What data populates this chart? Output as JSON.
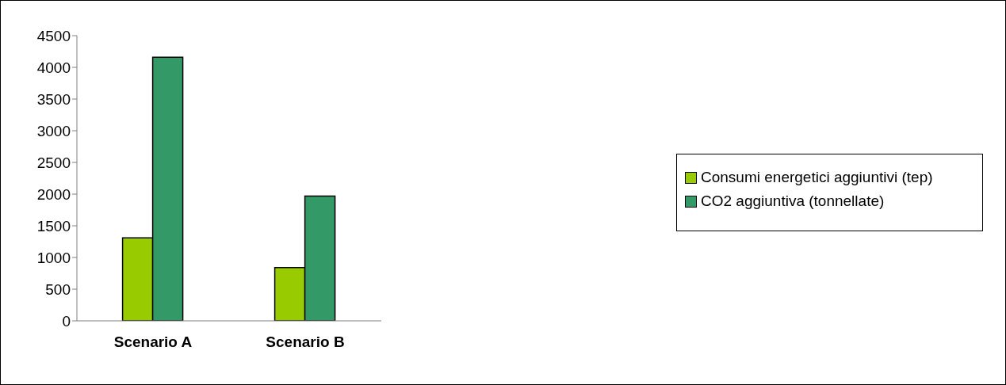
{
  "chart_data": {
    "type": "bar",
    "categories": [
      "Scenario A",
      "Scenario B"
    ],
    "series": [
      {
        "name": "Consumi energetici aggiuntivi (tep)",
        "color": "#99cc00",
        "values": [
          1310,
          840
        ]
      },
      {
        "name": "CO2 aggiuntiva (tonnellate)",
        "color": "#339966",
        "values": [
          4160,
          1970
        ]
      }
    ],
    "ylim": [
      0,
      4500
    ],
    "yticks": [
      0,
      500,
      1000,
      1500,
      2000,
      2500,
      3000,
      3500,
      4000,
      4500
    ],
    "grid": false,
    "legend": "right"
  }
}
